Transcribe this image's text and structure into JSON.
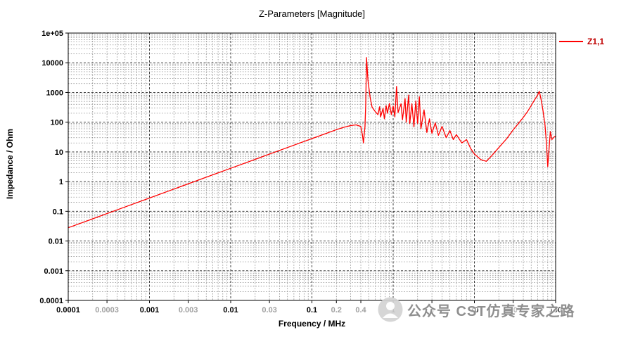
{
  "title": "Z-Parameters [Magnitude]",
  "legend": {
    "label": "Z1,1",
    "line_color": "#ff0000",
    "text_color": "#c00000"
  },
  "watermark": {
    "text": "公众号 CST仿真专家之路"
  },
  "colors": {
    "curve": "#ff0000",
    "gray_tick": "#a0a0a0",
    "black_tick": "#000000"
  },
  "chart_data": {
    "type": "line",
    "title": "Z-Parameters [Magnitude]",
    "xlabel": "Frequency / MHz",
    "ylabel": "Impedance / Ohm",
    "x_scale": "log",
    "y_scale": "log",
    "xlim": [
      0.0001,
      100
    ],
    "ylim": [
      0.0001,
      100000
    ],
    "grid": "log minor + major, dashed black, on",
    "legend_position": "top-right outside",
    "x_ticks": [
      {
        "v": 0.0001,
        "label": "0.0001",
        "gray": false
      },
      {
        "v": 0.0003,
        "label": "0.0003",
        "gray": true
      },
      {
        "v": 0.001,
        "label": "0.001",
        "gray": false
      },
      {
        "v": 0.003,
        "label": "0.003",
        "gray": true
      },
      {
        "v": 0.01,
        "label": "0.01",
        "gray": false
      },
      {
        "v": 0.03,
        "label": "0.03",
        "gray": true
      },
      {
        "v": 0.1,
        "label": "0.1",
        "gray": false
      },
      {
        "v": 0.2,
        "label": "0.2",
        "gray": true
      },
      {
        "v": 0.4,
        "label": "0.4",
        "gray": true
      },
      {
        "v": 1,
        "label": "1",
        "gray": false
      },
      {
        "v": 3,
        "label": "3",
        "gray": true
      },
      {
        "v": 10,
        "label": "10",
        "gray": false
      },
      {
        "v": 30,
        "label": "30",
        "gray": true
      },
      {
        "v": 100,
        "label": "100",
        "gray": false
      }
    ],
    "y_ticks": [
      {
        "v": 100000,
        "label": "1e+05"
      },
      {
        "v": 10000,
        "label": "10000"
      },
      {
        "v": 1000,
        "label": "1000"
      },
      {
        "v": 100,
        "label": "100"
      },
      {
        "v": 10,
        "label": "10"
      },
      {
        "v": 1,
        "label": "1"
      },
      {
        "v": 0.1,
        "label": "0.1"
      },
      {
        "v": 0.01,
        "label": "0.01"
      },
      {
        "v": 0.001,
        "label": "0.001"
      },
      {
        "v": 0.0001,
        "label": "0.0001"
      }
    ],
    "series": [
      {
        "name": "Z1,1",
        "color": "#ff0000",
        "points": [
          [
            0.0001,
            0.028
          ],
          [
            0.0002,
            0.056
          ],
          [
            0.0005,
            0.14
          ],
          [
            0.001,
            0.28
          ],
          [
            0.002,
            0.56
          ],
          [
            0.005,
            1.4
          ],
          [
            0.01,
            2.8
          ],
          [
            0.02,
            5.6
          ],
          [
            0.05,
            14
          ],
          [
            0.1,
            28
          ],
          [
            0.15,
            42
          ],
          [
            0.2,
            56
          ],
          [
            0.25,
            68
          ],
          [
            0.3,
            77
          ],
          [
            0.35,
            81
          ],
          [
            0.4,
            72
          ],
          [
            0.42,
            35
          ],
          [
            0.43,
            20
          ],
          [
            0.45,
            70
          ],
          [
            0.46,
            400
          ],
          [
            0.47,
            15000
          ],
          [
            0.49,
            2500
          ],
          [
            0.52,
            700
          ],
          [
            0.55,
            320
          ],
          [
            0.6,
            230
          ],
          [
            0.65,
            180
          ],
          [
            0.68,
            330
          ],
          [
            0.7,
            150
          ],
          [
            0.75,
            290
          ],
          [
            0.78,
            130
          ],
          [
            0.82,
            360
          ],
          [
            0.85,
            200
          ],
          [
            0.9,
            430
          ],
          [
            0.95,
            180
          ],
          [
            1.0,
            350
          ],
          [
            1.05,
            150
          ],
          [
            1.1,
            1600
          ],
          [
            1.15,
            210
          ],
          [
            1.25,
            420
          ],
          [
            1.3,
            120
          ],
          [
            1.4,
            620
          ],
          [
            1.45,
            100
          ],
          [
            1.55,
            820
          ],
          [
            1.6,
            90
          ],
          [
            1.7,
            420
          ],
          [
            1.8,
            70
          ],
          [
            1.9,
            520
          ],
          [
            2.0,
            90
          ],
          [
            2.1,
            720
          ],
          [
            2.2,
            60
          ],
          [
            2.4,
            260
          ],
          [
            2.6,
            45
          ],
          [
            2.8,
            130
          ],
          [
            3.0,
            42
          ],
          [
            3.3,
            95
          ],
          [
            3.6,
            36
          ],
          [
            4.0,
            72
          ],
          [
            4.5,
            30
          ],
          [
            5.0,
            52
          ],
          [
            5.5,
            26
          ],
          [
            6.0,
            38
          ],
          [
            7.0,
            20
          ],
          [
            8.0,
            26
          ],
          [
            9.0,
            13
          ],
          [
            10,
            8.5
          ],
          [
            12,
            5.5
          ],
          [
            14,
            4.8
          ],
          [
            16,
            7
          ],
          [
            20,
            14
          ],
          [
            25,
            28
          ],
          [
            30,
            55
          ],
          [
            35,
            92
          ],
          [
            40,
            145
          ],
          [
            45,
            225
          ],
          [
            50,
            360
          ],
          [
            55,
            560
          ],
          [
            60,
            820
          ],
          [
            63,
            1100
          ],
          [
            66,
            600
          ],
          [
            70,
            240
          ],
          [
            74,
            80
          ],
          [
            77,
            20
          ],
          [
            80,
            3.2
          ],
          [
            83,
            13
          ],
          [
            86,
            48
          ],
          [
            90,
            26
          ],
          [
            95,
            31
          ],
          [
            100,
            34
          ]
        ]
      }
    ]
  }
}
